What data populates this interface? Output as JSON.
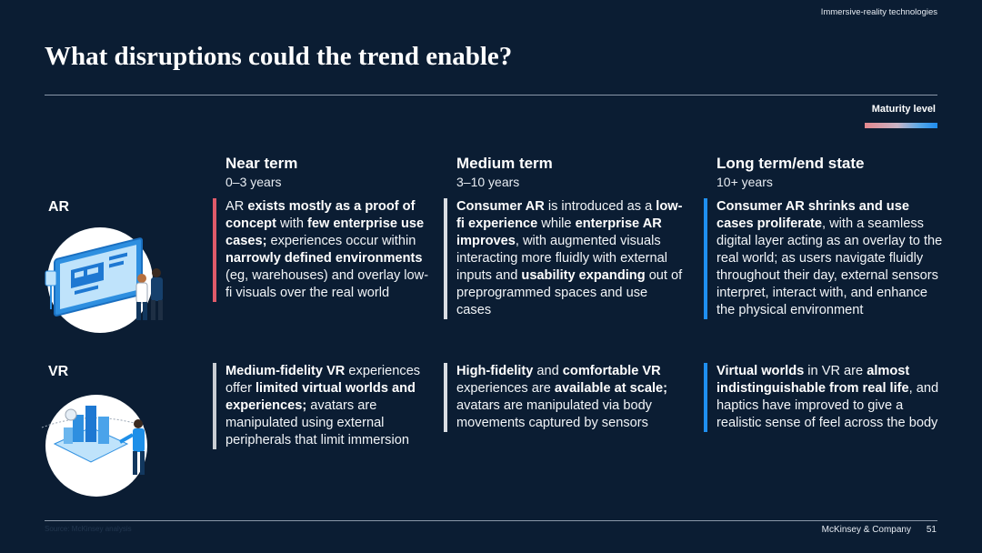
{
  "header": {
    "topic": "Immersive-reality technologies",
    "title": "What disruptions could the trend enable?"
  },
  "legend": {
    "label": "Maturity level",
    "colors": [
      "#e4888e",
      "#c9b4c6",
      "#1d8cf0"
    ]
  },
  "columns": [
    {
      "heading": "Near term",
      "subheading": "0–3 years"
    },
    {
      "heading": "Medium term",
      "subheading": "3–10 years"
    },
    {
      "heading": "Long term/end state",
      "subheading": "10+ years"
    }
  ],
  "rows": [
    {
      "label": "AR",
      "illustration": "ar-headset-users-illustration",
      "cells": [
        {
          "border_color": "#e05b6a",
          "segments": [
            {
              "t": "AR ",
              "b": false
            },
            {
              "t": "exists mostly as a proof of concept",
              "b": true
            },
            {
              "t": " with ",
              "b": false
            },
            {
              "t": "few enterprise use cases;",
              "b": true
            },
            {
              "t": " experiences occur within ",
              "b": false
            },
            {
              "t": "narrowly defined environments",
              "b": true
            },
            {
              "t": " (eg, warehouses) and overlay low-fi visuals over the real world",
              "b": false
            }
          ]
        },
        {
          "border_color": "#d9dde3",
          "segments": [
            {
              "t": "Consumer AR",
              "b": true
            },
            {
              "t": " is introduced as a ",
              "b": false
            },
            {
              "t": "low-fi experience",
              "b": true
            },
            {
              "t": " while ",
              "b": false
            },
            {
              "t": "enterprise AR improves",
              "b": true
            },
            {
              "t": ", with augmented visuals interacting more fluidly with external inputs and ",
              "b": false
            },
            {
              "t": "usability expanding",
              "b": true
            },
            {
              "t": " out of preprogrammed spaces and use cases",
              "b": false
            }
          ]
        },
        {
          "border_color": "#1f8ff0",
          "segments": [
            {
              "t": "Consumer AR shrinks and use cases proliferate",
              "b": true
            },
            {
              "t": ", with a seamless digital layer acting as an overlay to the real world; as users navigate fluidly throughout their day, external sensors interpret, interact with, and enhance the physical environment",
              "b": false
            }
          ]
        }
      ]
    },
    {
      "label": "VR",
      "illustration": "vr-user-virtual-city-illustration",
      "cells": [
        {
          "border_color": "#c8cdd3",
          "segments": [
            {
              "t": "Medium-fidelity VR",
              "b": true
            },
            {
              "t": " experiences offer ",
              "b": false
            },
            {
              "t": "limited virtual worlds and experiences;",
              "b": true
            },
            {
              "t": " avatars are manipulated using external peripherals that limit immersion",
              "b": false
            }
          ]
        },
        {
          "border_color": "#d9dde3",
          "segments": [
            {
              "t": "High-fidelity",
              "b": true
            },
            {
              "t": " and ",
              "b": false
            },
            {
              "t": "comfortable VR",
              "b": true
            },
            {
              "t": " experiences are ",
              "b": false
            },
            {
              "t": "available at scale;",
              "b": true
            },
            {
              "t": " avatars are manipulated via body movements captured by sensors",
              "b": false
            }
          ]
        },
        {
          "border_color": "#1f8ff0",
          "segments": [
            {
              "t": "Virtual worlds",
              "b": true
            },
            {
              "t": " in VR are ",
              "b": false
            },
            {
              "t": "almost indistinguishable from real life",
              "b": true
            },
            {
              "t": ", and haptics have improved to give a realistic sense of feel across the body",
              "b": false
            }
          ]
        }
      ]
    }
  ],
  "footer": {
    "source": "Source: McKinsey analysis",
    "brand": "McKinsey & Company",
    "page": "51"
  }
}
